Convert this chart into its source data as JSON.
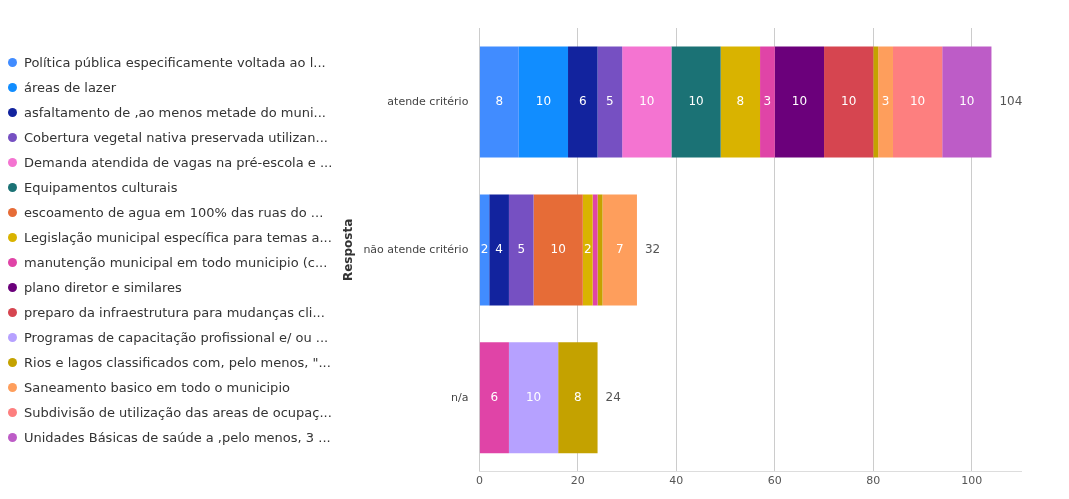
{
  "chart_data": {
    "type": "bar",
    "orientation": "horizontal",
    "stacked": true,
    "ylabel": "Resposta",
    "categories": [
      "atende critério",
      "não atende critério",
      "n/a"
    ],
    "series": [
      {
        "name": "Política pública especificamente voltada ao l...",
        "color": "#418cff",
        "values": [
          8,
          2,
          null
        ],
        "value_labels": [
          "8",
          "2",
          null
        ]
      },
      {
        "name": "áreas de lazer",
        "color": "#118dff",
        "values": [
          10,
          null,
          null
        ],
        "value_labels": [
          "10",
          null,
          null
        ]
      },
      {
        "name": "asfaltamento de ,ao menos metade do muni...",
        "color": "#12239e",
        "values": [
          6,
          4,
          null
        ],
        "value_labels": [
          "6",
          "4",
          null
        ]
      },
      {
        "name": "Cobertura vegetal nativa preservada utilizan...",
        "color": "#7650c2",
        "values": [
          5,
          5,
          null
        ],
        "value_labels": [
          "5",
          "5",
          null
        ]
      },
      {
        "name": "Demanda atendida de vagas na pré-escola e ...",
        "color": "#f474d1",
        "values": [
          10,
          null,
          null
        ],
        "value_labels": [
          "10",
          null,
          null
        ]
      },
      {
        "name": "Equipamentos culturais",
        "color": "#1b7275",
        "values": [
          10,
          null,
          null
        ],
        "value_labels": [
          "10",
          null,
          null
        ]
      },
      {
        "name": "escoamento de agua em 100% das ruas do ...",
        "color": "#e66c37",
        "values": [
          null,
          10,
          null
        ],
        "value_labels": [
          null,
          "10",
          null
        ]
      },
      {
        "name": "Legislação municipal específica para temas a...",
        "color": "#d9b300",
        "values": [
          8,
          2,
          null
        ],
        "value_labels": [
          "8",
          "2",
          null
        ]
      },
      {
        "name": "manutenção municipal em todo municipio (c...",
        "color": "#e044a7",
        "values": [
          3,
          1,
          6
        ],
        "value_labels": [
          "3",
          null,
          "6"
        ]
      },
      {
        "name": "plano diretor e similares",
        "color": "#6b007b",
        "values": [
          10,
          null,
          null
        ],
        "value_labels": [
          "10",
          null,
          null
        ]
      },
      {
        "name": "preparo da infraestrutura para mudanças cli...",
        "color": "#d64550",
        "values": [
          10,
          null,
          null
        ],
        "value_labels": [
          "10",
          null,
          null
        ]
      },
      {
        "name": "Programas de capacitação profissional e/ ou ...",
        "color": "#b6a1ff",
        "values": [
          null,
          null,
          10
        ],
        "value_labels": [
          null,
          null,
          "10"
        ]
      },
      {
        "name": "Rios e lagos classificados com, pelo menos, \"...",
        "color": "#c4a200",
        "values": [
          1,
          1,
          8
        ],
        "value_labels": [
          null,
          null,
          "8"
        ]
      },
      {
        "name": "Saneamento basico em todo o municipio",
        "color": "#fe9e5c",
        "values": [
          3,
          7,
          null
        ],
        "value_labels": [
          "3",
          "7",
          null
        ]
      },
      {
        "name": "Subdivisão de utilização das areas de ocupaç...",
        "color": "#fd7f7f",
        "values": [
          10,
          null,
          null
        ],
        "value_labels": [
          "10",
          null,
          null
        ]
      },
      {
        "name": "Unidades Básicas de saúde a ,pelo menos, 3 ...",
        "color": "#bd5cc7",
        "values": [
          10,
          null,
          null
        ],
        "value_labels": [
          "10",
          null,
          null
        ]
      }
    ],
    "totals": [
      "104",
      "32",
      "24"
    ],
    "xlim": [
      0,
      110
    ],
    "xticks": [
      0,
      20,
      40,
      60,
      80,
      100
    ],
    "grid": "x",
    "legend": "left"
  }
}
